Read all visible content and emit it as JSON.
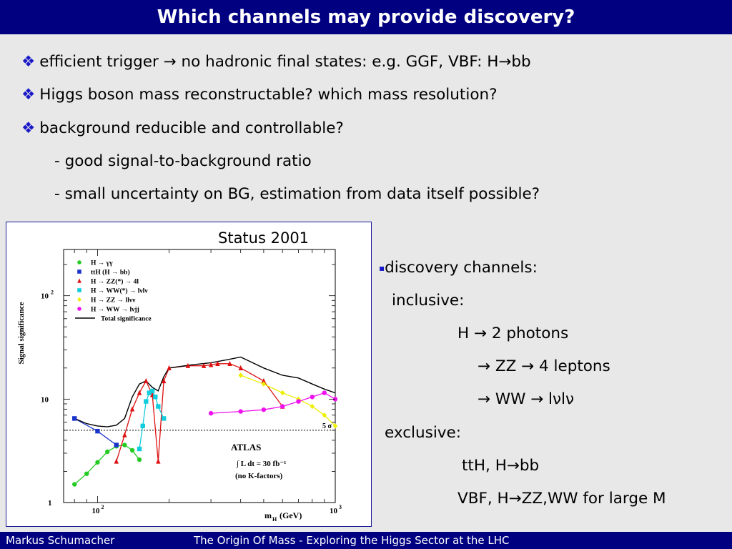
{
  "slide": {
    "title": "Which channels may provide discovery?",
    "bullets": [
      {
        "marker": "❖",
        "text": "efficient trigger → no hadronic final states: e.g. GGF, VBF: H→bb"
      },
      {
        "marker": "❖",
        "text": "Higgs boson mass reconstructable?   which mass resolution?"
      },
      {
        "marker": "❖",
        "text": "background reducible and controllable?"
      },
      {
        "marker": "",
        "text": "- good signal-to-background ratio"
      },
      {
        "marker": "",
        "text": "- small uncertainty on BG,  estimation from data itself possible?"
      }
    ],
    "status_label": "Status 2001",
    "right_panel": {
      "marker": "▪",
      "lines": [
        "discovery channels:",
        "inclusive:",
        "H → 2 photons",
        "→ ZZ → 4 leptons",
        "→ WW → lνlν",
        "exclusive:",
        "ttH, H→bb",
        "VBF, H→ZZ,WW for large M"
      ]
    },
    "footer": {
      "author": "Markus  Schumacher",
      "talk": "The Origin Of Mass - Exploring the Higgs Sector at the LHC"
    }
  },
  "chart_data": {
    "type": "line",
    "ylabel": "Signal significance",
    "xlabel_main": "m",
    "xlabel_sub": "H",
    "xlabel_unit": "(GeV)",
    "x_scale": "log",
    "y_scale": "log",
    "xlim": [
      72,
      1000
    ],
    "ylim": [
      1,
      280
    ],
    "x_ticks": [
      {
        "label": "10",
        "exp": "2"
      },
      {
        "label": "10",
        "exp": "3"
      }
    ],
    "y_ticks": [
      {
        "label": "1"
      },
      {
        "label": "10"
      },
      {
        "label": "10",
        "exp": "2"
      }
    ],
    "threshold": {
      "value": 5,
      "label": "5 σ",
      "style": "dotted"
    },
    "annotations": {
      "experiment": "ATLAS",
      "luminosity": "∫ L dt = 30 fb⁻¹",
      "note": "(no K-factors)"
    },
    "series": [
      {
        "name": "H → γγ",
        "color": "#22cc22",
        "marker": "circle",
        "x": [
          80,
          90,
          100,
          110,
          120,
          130,
          140,
          150
        ],
        "y": [
          1.5,
          1.9,
          2.45,
          3.1,
          3.5,
          3.6,
          3.2,
          2.6
        ]
      },
      {
        "name": "ttH (H → bb)",
        "color": "#1a33cc",
        "marker": "square",
        "x": [
          80,
          100,
          120
        ],
        "y": [
          6.5,
          4.9,
          3.6
        ]
      },
      {
        "name": "H → ZZ(*) → 4l",
        "color": "#dd1111",
        "marker": "triangle",
        "x": [
          120,
          130,
          140,
          150,
          160,
          170,
          180,
          190,
          200,
          240,
          280,
          300,
          320,
          360,
          400,
          500,
          600
        ],
        "y": [
          2.5,
          4.5,
          8,
          11.5,
          15,
          11,
          2.5,
          15,
          20,
          21,
          21,
          21.5,
          22,
          22,
          20,
          15,
          8.5
        ]
      },
      {
        "name": "H → WW(*) → lνlν",
        "color": "#11ccdd",
        "marker": "square",
        "x": [
          150,
          155,
          160,
          165,
          170,
          175,
          180,
          190
        ],
        "y": [
          3.3,
          5.5,
          9.5,
          11.5,
          12,
          10.5,
          8.5,
          6.5
        ]
      },
      {
        "name": "H → ZZ → llνν",
        "color": "#eeee00",
        "marker": "diamond",
        "x": [
          400,
          500,
          600,
          700,
          800,
          900,
          1000
        ],
        "y": [
          17,
          14,
          11.5,
          10,
          8.5,
          7,
          5.5
        ]
      },
      {
        "name": "H → WW → lνjj",
        "color": "#ee11ee",
        "marker": "circle",
        "x": [
          300,
          400,
          500,
          600,
          700,
          800,
          900,
          1000
        ],
        "y": [
          7.3,
          7.6,
          7.9,
          8.5,
          9.5,
          10.5,
          11.5,
          10
        ]
      },
      {
        "name": "Total significance",
        "color": "#000000",
        "marker": "none",
        "x": [
          80,
          90,
          100,
          110,
          120,
          130,
          140,
          150,
          160,
          170,
          180,
          190,
          200,
          250,
          300,
          350,
          400,
          500,
          600,
          700,
          800,
          900,
          1000
        ],
        "y": [
          6.5,
          5.8,
          5.5,
          5.4,
          5.6,
          6.5,
          10.5,
          14,
          15,
          13,
          12,
          16.5,
          20,
          21.5,
          22.5,
          24,
          25.5,
          20,
          17,
          16,
          14,
          12.5,
          11.5
        ]
      }
    ]
  }
}
